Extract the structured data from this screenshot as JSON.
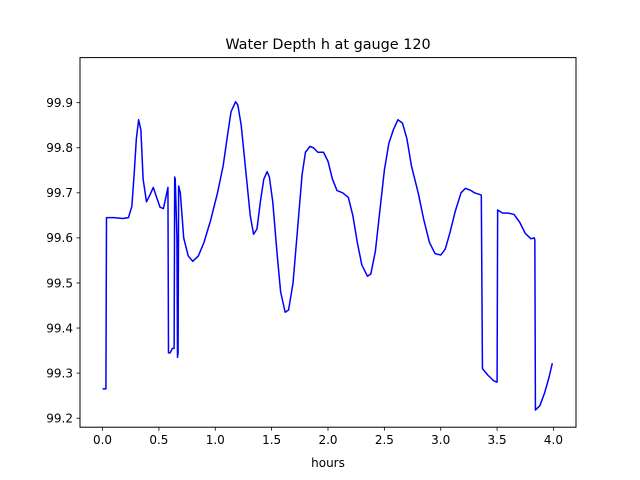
{
  "chart_data": {
    "type": "line",
    "title": "Water Depth h at gauge 120",
    "xlabel": "hours",
    "ylabel": "",
    "xlim": [
      -0.2,
      4.2
    ],
    "ylim": [
      99.18,
      100.0
    ],
    "grid": false,
    "x_ticks": [
      0.0,
      0.5,
      1.0,
      1.5,
      2.0,
      2.5,
      3.0,
      3.5,
      4.0
    ],
    "x_tick_labels": [
      "0.0",
      "0.5",
      "1.0",
      "1.5",
      "2.0",
      "2.5",
      "3.0",
      "3.5",
      "4.0"
    ],
    "y_ticks": [
      99.2,
      99.3,
      99.4,
      99.5,
      99.6,
      99.7,
      99.8,
      99.9
    ],
    "y_tick_labels": [
      "99.2",
      "99.3",
      "99.4",
      "99.5",
      "99.6",
      "99.7",
      "99.8",
      "99.9"
    ],
    "series": [
      {
        "color": "#0000ff",
        "points": [
          [
            0.0,
            99.265
          ],
          [
            0.03,
            99.265
          ],
          [
            0.035,
            99.645
          ],
          [
            0.1,
            99.645
          ],
          [
            0.18,
            99.643
          ],
          [
            0.23,
            99.645
          ],
          [
            0.26,
            99.67
          ],
          [
            0.28,
            99.74
          ],
          [
            0.3,
            99.82
          ],
          [
            0.32,
            99.862
          ],
          [
            0.34,
            99.84
          ],
          [
            0.36,
            99.73
          ],
          [
            0.39,
            99.68
          ],
          [
            0.42,
            99.695
          ],
          [
            0.45,
            99.712
          ],
          [
            0.48,
            99.69
          ],
          [
            0.51,
            99.668
          ],
          [
            0.54,
            99.665
          ],
          [
            0.57,
            99.7
          ],
          [
            0.58,
            99.712
          ],
          [
            0.585,
            99.345
          ],
          [
            0.6,
            99.345
          ],
          [
            0.62,
            99.355
          ],
          [
            0.635,
            99.355
          ],
          [
            0.64,
            99.735
          ],
          [
            0.645,
            99.73
          ],
          [
            0.66,
            99.6
          ],
          [
            0.665,
            99.335
          ],
          [
            0.67,
            99.345
          ],
          [
            0.675,
            99.715
          ],
          [
            0.69,
            99.7
          ],
          [
            0.72,
            99.6
          ],
          [
            0.76,
            99.56
          ],
          [
            0.8,
            99.548
          ],
          [
            0.85,
            99.56
          ],
          [
            0.9,
            99.59
          ],
          [
            0.96,
            99.64
          ],
          [
            1.02,
            99.7
          ],
          [
            1.07,
            99.76
          ],
          [
            1.11,
            99.83
          ],
          [
            1.14,
            99.88
          ],
          [
            1.18,
            99.902
          ],
          [
            1.2,
            99.895
          ],
          [
            1.23,
            99.85
          ],
          [
            1.27,
            99.75
          ],
          [
            1.31,
            99.65
          ],
          [
            1.34,
            99.608
          ],
          [
            1.37,
            99.62
          ],
          [
            1.4,
            99.68
          ],
          [
            1.43,
            99.73
          ],
          [
            1.46,
            99.747
          ],
          [
            1.48,
            99.735
          ],
          [
            1.51,
            99.68
          ],
          [
            1.55,
            99.56
          ],
          [
            1.58,
            99.48
          ],
          [
            1.62,
            99.435
          ],
          [
            1.65,
            99.44
          ],
          [
            1.69,
            99.5
          ],
          [
            1.73,
            99.62
          ],
          [
            1.77,
            99.74
          ],
          [
            1.8,
            99.79
          ],
          [
            1.84,
            99.803
          ],
          [
            1.87,
            99.8
          ],
          [
            1.91,
            99.79
          ],
          [
            1.96,
            99.79
          ],
          [
            2.0,
            99.77
          ],
          [
            2.04,
            99.73
          ],
          [
            2.08,
            99.705
          ],
          [
            2.13,
            99.7
          ],
          [
            2.18,
            99.69
          ],
          [
            2.22,
            99.65
          ],
          [
            2.26,
            99.59
          ],
          [
            2.3,
            99.54
          ],
          [
            2.35,
            99.515
          ],
          [
            2.38,
            99.52
          ],
          [
            2.42,
            99.57
          ],
          [
            2.46,
            99.66
          ],
          [
            2.5,
            99.75
          ],
          [
            2.54,
            99.81
          ],
          [
            2.58,
            99.84
          ],
          [
            2.62,
            99.862
          ],
          [
            2.66,
            99.855
          ],
          [
            2.7,
            99.82
          ],
          [
            2.74,
            99.76
          ],
          [
            2.8,
            99.7
          ],
          [
            2.85,
            99.64
          ],
          [
            2.9,
            99.59
          ],
          [
            2.95,
            99.565
          ],
          [
            3.0,
            99.562
          ],
          [
            3.04,
            99.575
          ],
          [
            3.08,
            99.61
          ],
          [
            3.13,
            99.66
          ],
          [
            3.18,
            99.7
          ],
          [
            3.22,
            99.71
          ],
          [
            3.27,
            99.705
          ],
          [
            3.3,
            99.7
          ],
          [
            3.36,
            99.695
          ],
          [
            3.37,
            99.31
          ],
          [
            3.42,
            99.295
          ],
          [
            3.47,
            99.283
          ],
          [
            3.5,
            99.28
          ],
          [
            3.505,
            99.662
          ],
          [
            3.55,
            99.655
          ],
          [
            3.6,
            99.655
          ],
          [
            3.65,
            99.652
          ],
          [
            3.7,
            99.635
          ],
          [
            3.75,
            99.61
          ],
          [
            3.8,
            99.598
          ],
          [
            3.83,
            99.6
          ],
          [
            3.835,
            99.595
          ],
          [
            3.84,
            99.218
          ],
          [
            3.88,
            99.228
          ],
          [
            3.92,
            99.255
          ],
          [
            3.96,
            99.29
          ],
          [
            3.99,
            99.322
          ]
        ]
      }
    ]
  }
}
